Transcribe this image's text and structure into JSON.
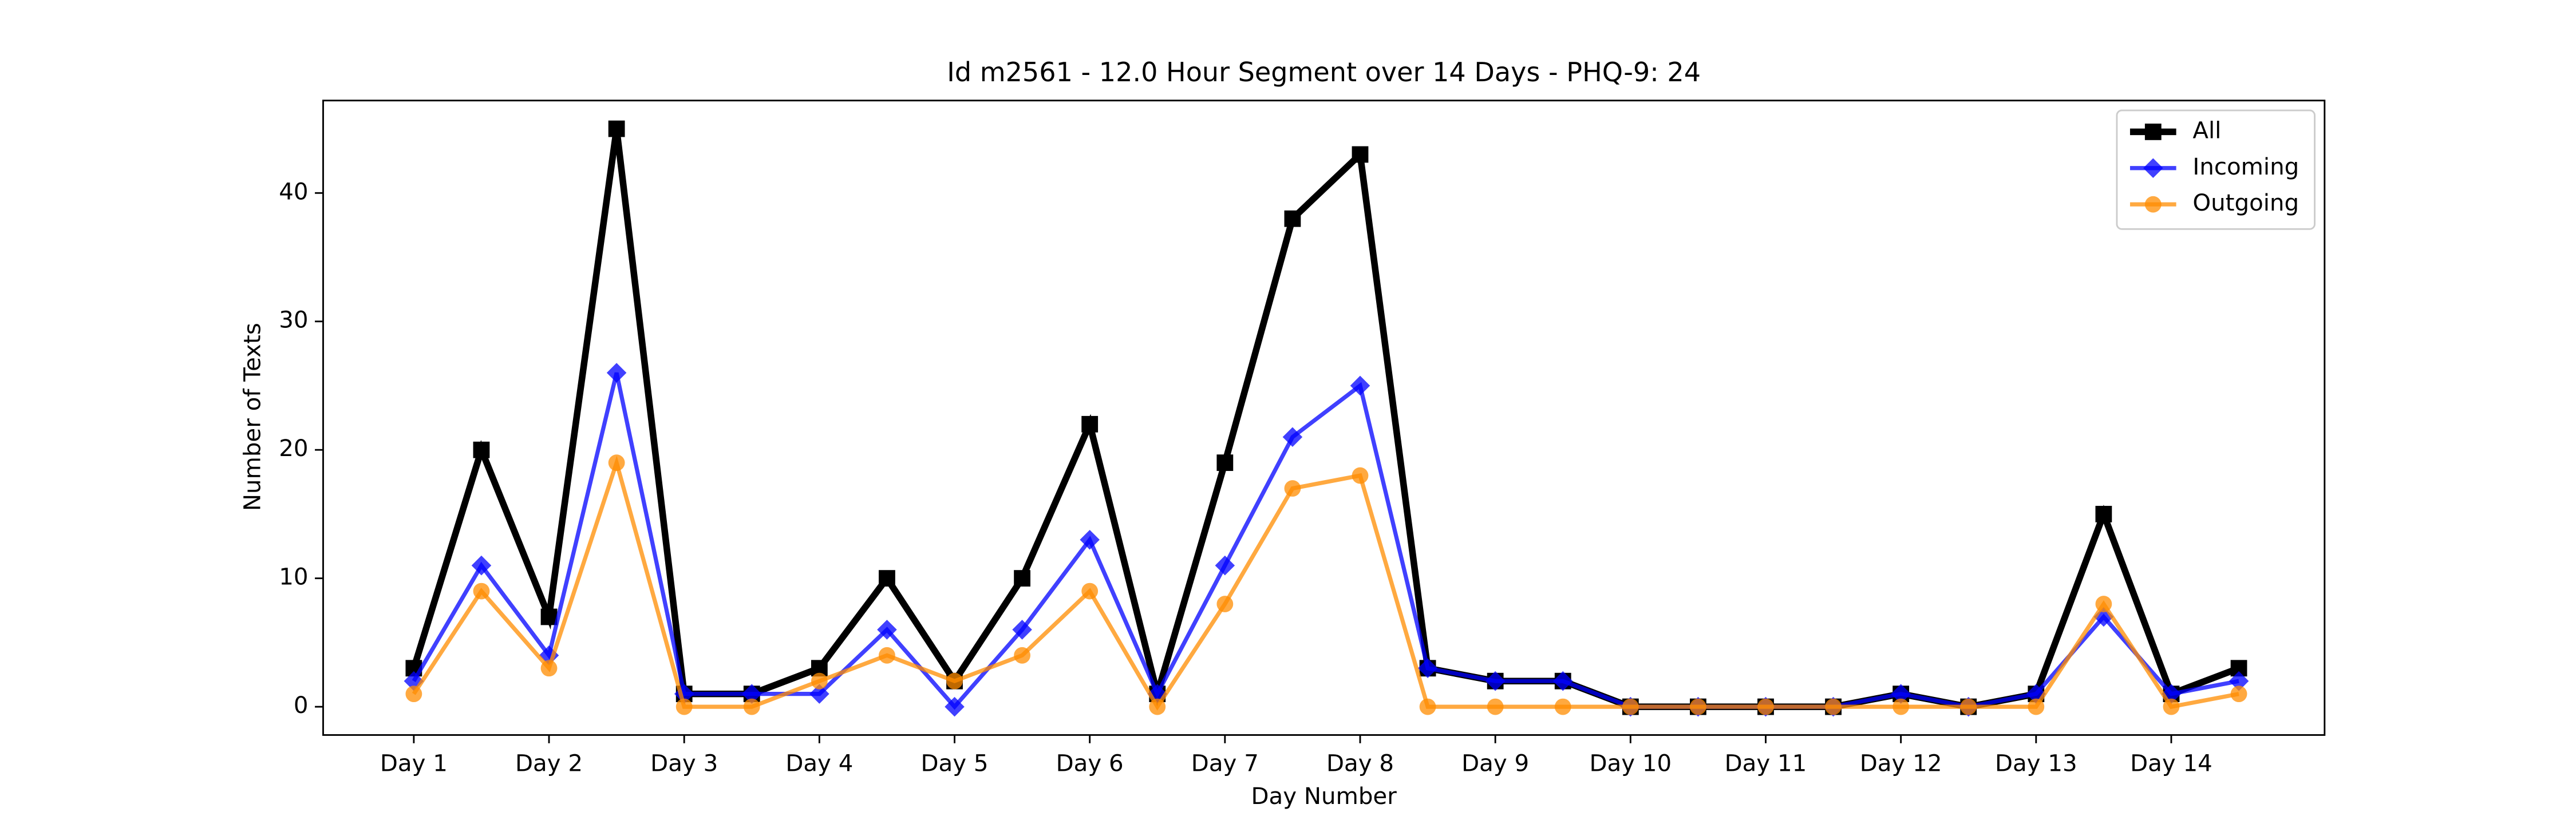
{
  "chart_data": {
    "type": "line",
    "title": "Id m2561 - 12.0 Hour Segment over 14 Days - PHQ-9: 24",
    "x_label": "Day Number",
    "y_label": "Number of Texts",
    "categories": [
      "Day 1",
      null,
      "Day 2",
      null,
      "Day 3",
      null,
      "Day 4",
      null,
      "Day 5",
      null,
      "Day 6",
      null,
      "Day 7",
      null,
      "Day 8",
      null,
      "Day 9",
      null,
      "Day 10",
      null,
      "Day 11",
      null,
      "Day 12",
      null,
      "Day 13",
      null,
      "Day 14",
      null
    ],
    "series": [
      {
        "name": "All",
        "color": "#000000",
        "marker": "square",
        "values": [
          3,
          20,
          7,
          45,
          1,
          1,
          3,
          10,
          2,
          10,
          22,
          1,
          19,
          38,
          43,
          3,
          2,
          2,
          0,
          0,
          0,
          0,
          1,
          0,
          1,
          15,
          1,
          3
        ]
      },
      {
        "name": "Incoming",
        "color": "#0000ff",
        "marker": "diamond",
        "values": [
          2,
          11,
          4,
          26,
          1,
          1,
          1,
          6,
          0,
          6,
          13,
          1,
          11,
          21,
          25,
          3,
          2,
          2,
          0,
          0,
          0,
          0,
          1,
          0,
          1,
          7,
          1,
          2
        ]
      },
      {
        "name": "Outgoing",
        "color": "#ff8c00",
        "marker": "circle",
        "values": [
          1,
          9,
          3,
          19,
          0,
          0,
          2,
          4,
          2,
          4,
          9,
          0,
          8,
          17,
          18,
          0,
          0,
          0,
          0,
          0,
          0,
          0,
          0,
          0,
          0,
          8,
          0,
          1
        ]
      }
    ],
    "ylim": [
      -2.2,
      47.2
    ],
    "yticks": [
      0,
      10,
      20,
      30,
      40
    ],
    "legend": "upper right"
  }
}
